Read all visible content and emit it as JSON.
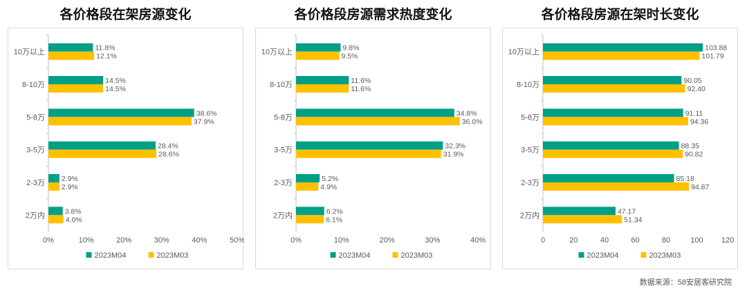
{
  "charts": {
    "source": "数据来源：58安居客研究院"
  },
  "chart_data": [
    {
      "type": "bar",
      "orientation": "horizontal",
      "title": "各价格段在架房源变化",
      "categories": [
        "10万以上",
        "8-10万",
        "5-8万",
        "3-5万",
        "2-3万",
        "2万内"
      ],
      "series": [
        {
          "name": "2023M04",
          "values": [
            11.8,
            14.5,
            38.6,
            28.4,
            2.9,
            3.8
          ],
          "labels": [
            "11.8%",
            "14.5%",
            "38.6%",
            "28.4%",
            "2.9%",
            "3.8%"
          ],
          "color": "#00a087"
        },
        {
          "name": "2023M03",
          "values": [
            12.1,
            14.5,
            37.9,
            28.6,
            2.9,
            4.0
          ],
          "labels": [
            "12.1%",
            "14.5%",
            "37.9%",
            "28.6%",
            "2.9%",
            "4.0%"
          ],
          "color": "#ffc000"
        }
      ],
      "xlim": [
        0,
        50
      ],
      "ticks": [
        0,
        10,
        20,
        30,
        40,
        50
      ],
      "tick_labels": [
        "0%",
        "10%",
        "20%",
        "30%",
        "40%",
        "50%"
      ],
      "grid": false,
      "legend": "bottom"
    },
    {
      "type": "bar",
      "orientation": "horizontal",
      "title": "各价格段房源需求热度变化",
      "categories": [
        "10万以上",
        "8-10万",
        "5-8万",
        "3-5万",
        "2-3万",
        "2万内"
      ],
      "series": [
        {
          "name": "2023M04",
          "values": [
            9.8,
            11.6,
            34.8,
            32.3,
            5.2,
            6.2
          ],
          "labels": [
            "9.8%",
            "11.6%",
            "34.8%",
            "32.3%",
            "5.2%",
            "6.2%"
          ],
          "color": "#00a087"
        },
        {
          "name": "2023M03",
          "values": [
            9.5,
            11.6,
            36.0,
            31.9,
            4.9,
            6.1
          ],
          "labels": [
            "9.5%",
            "11.6%",
            "36.0%",
            "31.9%",
            "4.9%",
            "6.1%"
          ],
          "color": "#ffc000"
        }
      ],
      "xlim": [
        0,
        40
      ],
      "ticks": [
        0,
        10,
        20,
        30,
        40
      ],
      "tick_labels": [
        "0%",
        "10%",
        "20%",
        "30%",
        "40%"
      ],
      "grid": false,
      "legend": "bottom"
    },
    {
      "type": "bar",
      "orientation": "horizontal",
      "title": "各价格段房源在架时长变化",
      "categories": [
        "10万以上",
        "8-10万",
        "5-8万",
        "3-5万",
        "2-3万",
        "2万内"
      ],
      "series": [
        {
          "name": "2023M04",
          "values": [
            103.88,
            90.05,
            91.11,
            88.35,
            85.18,
            47.17
          ],
          "labels": [
            "103.88",
            "90.05",
            "91.11",
            "88.35",
            "85.18",
            "47.17"
          ],
          "color": "#00a087"
        },
        {
          "name": "2023M03",
          "values": [
            101.79,
            92.4,
            94.36,
            90.82,
            94.87,
            51.34
          ],
          "labels": [
            "101.79",
            "92.40",
            "94.36",
            "90.82",
            "94.87",
            "51.34"
          ],
          "color": "#ffc000"
        }
      ],
      "xlim": [
        0,
        120
      ],
      "ticks": [
        0,
        20,
        40,
        60,
        80,
        100,
        120
      ],
      "tick_labels": [
        "0",
        "20",
        "40",
        "60",
        "80",
        "100",
        "120"
      ],
      "grid": false,
      "legend": "bottom"
    }
  ]
}
